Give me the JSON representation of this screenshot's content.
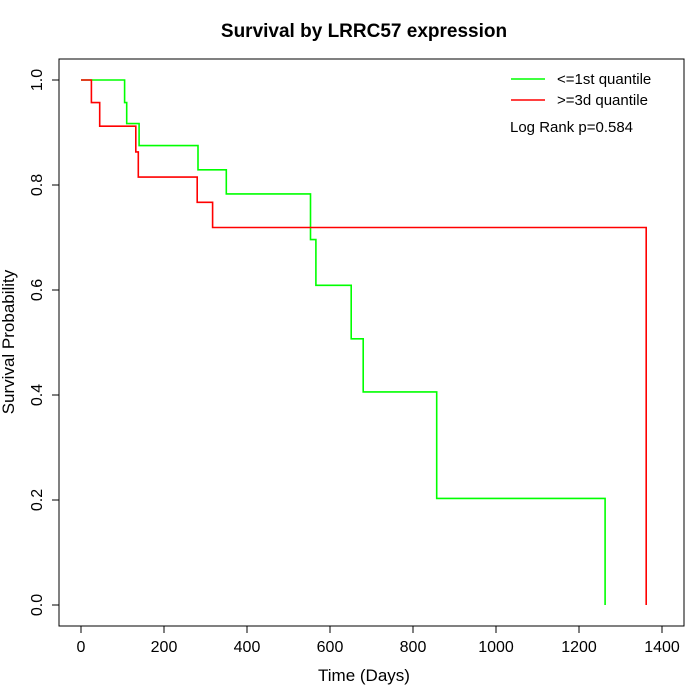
{
  "chart_data": {
    "type": "line",
    "title": "Survival by LRRC57 expression",
    "xlabel": "Time (Days)",
    "ylabel": "Survival Probability",
    "xlim": [
      0,
      1400
    ],
    "ylim": [
      0,
      1
    ],
    "xticks": [
      0,
      200,
      400,
      600,
      800,
      1000,
      1200,
      1400
    ],
    "yticks": [
      0.0,
      0.2,
      0.4,
      0.6,
      0.8,
      1.0
    ],
    "xtick_labels": [
      "0",
      "200",
      "400",
      "600",
      "800",
      "1000",
      "1200",
      "1400"
    ],
    "ytick_labels": [
      "0.0",
      "0.2",
      "0.4",
      "0.6",
      "0.8",
      "1.0"
    ],
    "grid": false,
    "legend_position": "top-right",
    "annotation": "Log Rank p=0.584",
    "series": [
      {
        "name": "<=1st quantile",
        "color": "#00ff00",
        "steps": [
          [
            0,
            1.0
          ],
          [
            105,
            1.0
          ],
          [
            105,
            0.957
          ],
          [
            110,
            0.957
          ],
          [
            110,
            0.917
          ],
          [
            140,
            0.917
          ],
          [
            140,
            0.875
          ],
          [
            282,
            0.875
          ],
          [
            282,
            0.829
          ],
          [
            350,
            0.829
          ],
          [
            350,
            0.783
          ],
          [
            553,
            0.783
          ],
          [
            553,
            0.696
          ],
          [
            566,
            0.696
          ],
          [
            566,
            0.609
          ],
          [
            651,
            0.609
          ],
          [
            651,
            0.507
          ],
          [
            680,
            0.507
          ],
          [
            680,
            0.406
          ],
          [
            857,
            0.406
          ],
          [
            857,
            0.203
          ],
          [
            1263,
            0.203
          ],
          [
            1263,
            0.0
          ]
        ]
      },
      {
        "name": ">=3d quantile",
        "color": "#ff0000",
        "steps": [
          [
            0,
            1.0
          ],
          [
            25,
            1.0
          ],
          [
            25,
            0.957
          ],
          [
            45,
            0.957
          ],
          [
            45,
            0.912
          ],
          [
            132,
            0.912
          ],
          [
            132,
            0.863
          ],
          [
            138,
            0.863
          ],
          [
            138,
            0.815
          ],
          [
            280,
            0.815
          ],
          [
            280,
            0.767
          ],
          [
            317,
            0.767
          ],
          [
            317,
            0.719
          ],
          [
            1362,
            0.719
          ],
          [
            1362,
            0.0
          ]
        ]
      }
    ]
  }
}
